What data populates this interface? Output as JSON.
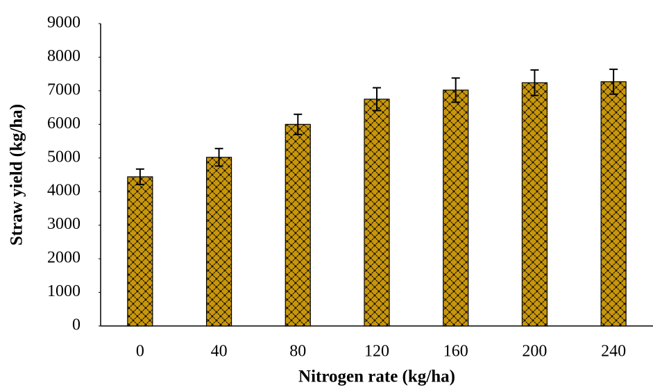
{
  "chart_data": {
    "type": "bar",
    "x_label": "Nitrogen rate (kg/ha)",
    "y_label": "Straw yield (kg/ha)",
    "categories": [
      "0",
      "40",
      "80",
      "120",
      "160",
      "200",
      "240"
    ],
    "values": [
      4440,
      5020,
      6000,
      6750,
      7020,
      7240,
      7270
    ],
    "errors": [
      230,
      260,
      300,
      340,
      360,
      380,
      370
    ],
    "color": "#c8960c",
    "ylim": [
      0,
      9000
    ],
    "yticks": [
      0,
      1000,
      2000,
      3000,
      4000,
      5000,
      6000,
      7000,
      8000,
      9000
    ],
    "grid": false
  }
}
